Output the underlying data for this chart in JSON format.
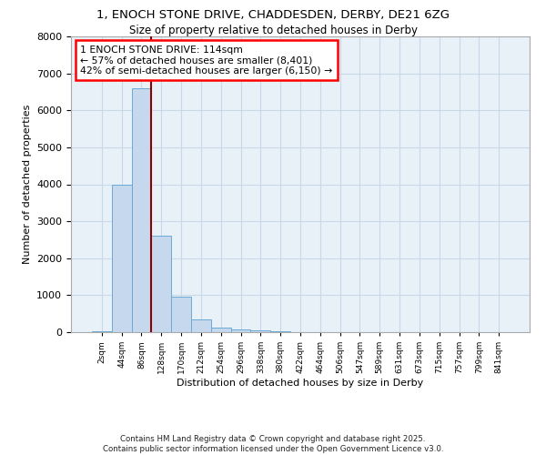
{
  "title1": "1, ENOCH STONE DRIVE, CHADDESDEN, DERBY, DE21 6ZG",
  "title2": "Size of property relative to detached houses in Derby",
  "xlabel": "Distribution of detached houses by size in Derby",
  "ylabel": "Number of detached properties",
  "categories": [
    "2sqm",
    "44sqm",
    "86sqm",
    "128sqm",
    "170sqm",
    "212sqm",
    "254sqm",
    "296sqm",
    "338sqm",
    "380sqm",
    "422sqm",
    "464sqm",
    "506sqm",
    "547sqm",
    "589sqm",
    "631sqm",
    "673sqm",
    "715sqm",
    "757sqm",
    "799sqm",
    "841sqm"
  ],
  "values": [
    30,
    4000,
    6600,
    2600,
    950,
    350,
    130,
    70,
    40,
    20,
    8,
    4,
    2,
    1,
    0,
    0,
    0,
    0,
    0,
    0,
    0
  ],
  "bar_color": "#c5d8ed",
  "bar_edge_color": "#6aaad4",
  "grid_color": "#c8d8e8",
  "bg_color": "#e8f0f8",
  "vline_color": "#8b0000",
  "annotation_text": "1 ENOCH STONE DRIVE: 114sqm\n← 57% of detached houses are smaller (8,401)\n42% of semi-detached houses are larger (6,150) →",
  "ylim": [
    0,
    8000
  ],
  "yticks": [
    0,
    1000,
    2000,
    3000,
    4000,
    5000,
    6000,
    7000,
    8000
  ],
  "footer": "Contains HM Land Registry data © Crown copyright and database right 2025.\nContains public sector information licensed under the Open Government Licence v3.0."
}
